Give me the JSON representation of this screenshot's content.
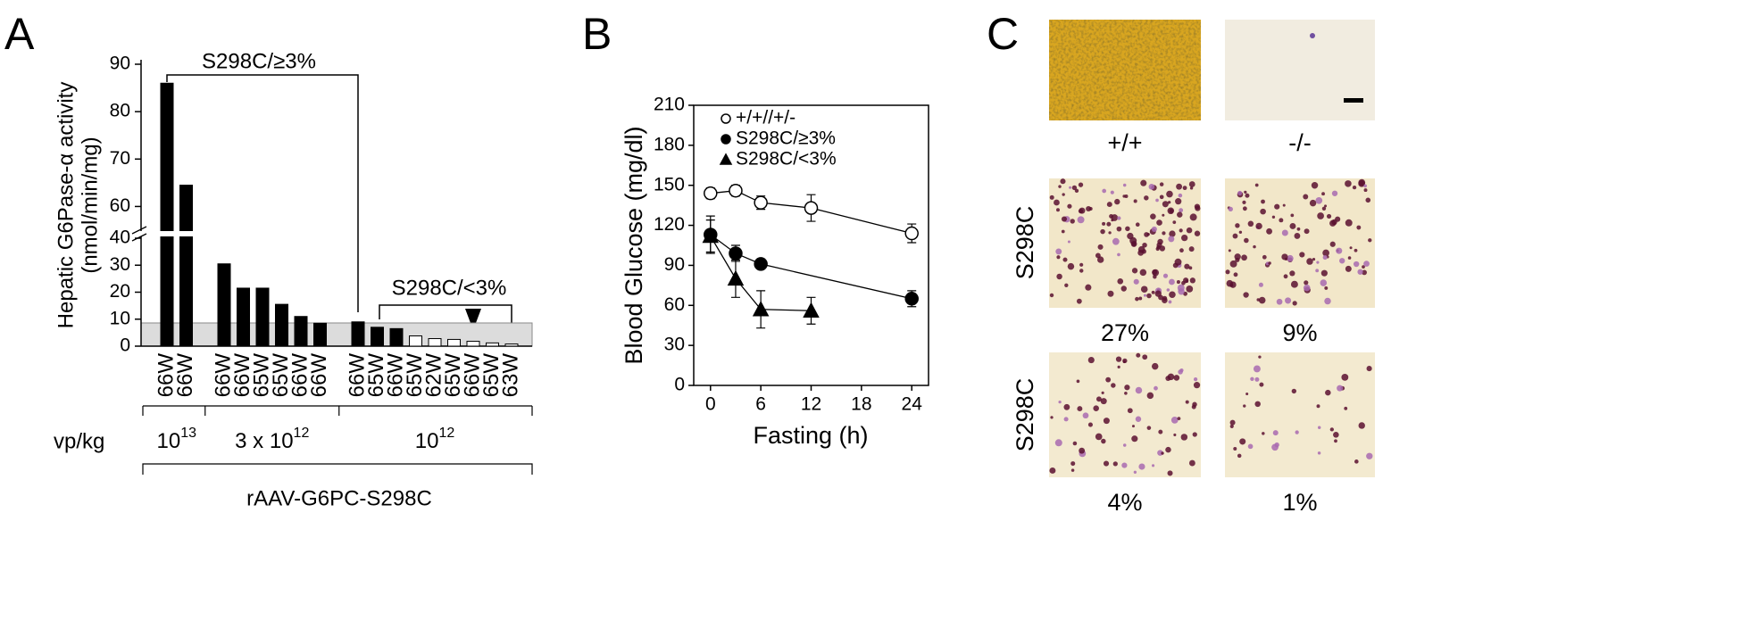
{
  "chart_data": [
    {
      "type": "bar",
      "panel_label": "A",
      "y_label": [
        "Hepatic G6Pase-α activity",
        "(nmol/min/mg)"
      ],
      "x_label": "vp/kg",
      "group_title": "rAAV-G6PC-S298C",
      "annotations": [
        "S298C/≥3%",
        "S298C/<3%"
      ],
      "ylim": [
        0,
        90
      ],
      "ybreak": [
        40,
        55
      ],
      "yticks": [
        0,
        10,
        20,
        30,
        40,
        60,
        70,
        80,
        90
      ],
      "threshold": 8.6,
      "groups": [
        {
          "dose": [
            "10",
            "13"
          ],
          "categories": [
            "66W",
            "66W"
          ],
          "values": [
            86,
            64.5
          ],
          "colors": [
            "#000000",
            "#000000"
          ]
        },
        {
          "dose": [
            "3 x 10",
            "12"
          ],
          "categories": [
            "66W",
            "66W",
            "65W",
            "65W",
            "66W",
            "66W"
          ],
          "values": [
            30.5,
            21.5,
            21.5,
            15.5,
            11,
            8.5
          ],
          "colors": [
            "#000000",
            "#000000",
            "#000000",
            "#000000",
            "#000000",
            "#000000"
          ]
        },
        {
          "dose": [
            "10",
            "12"
          ],
          "categories": [
            "66W",
            "65W",
            "66W",
            "65W",
            "62W",
            "65W",
            "66W",
            "65W",
            "63W"
          ],
          "values": [
            9,
            7,
            6.5,
            3.8,
            2.8,
            2.5,
            1.8,
            1.2,
            0.8
          ],
          "colors": [
            "#000000",
            "#000000",
            "#000000",
            "#ffffff",
            "#ffffff",
            "#ffffff",
            "#ffffff",
            "#ffffff",
            "#ffffff"
          ]
        }
      ]
    },
    {
      "type": "line",
      "panel_label": "B",
      "x_label": "Fasting (h)",
      "y_label": "Blood Glucose (mg/dl)",
      "xlim": [
        -2,
        26
      ],
      "xticks": [
        0,
        6,
        12,
        18,
        24
      ],
      "ylim": [
        0,
        210
      ],
      "yticks": [
        0,
        30,
        60,
        90,
        120,
        150,
        180,
        210
      ],
      "legend": "upper left",
      "series": [
        {
          "name": "+/+//+/-",
          "marker": "circle",
          "color": "#000000",
          "fill": "#ffffff",
          "x": [
            0,
            3,
            6,
            12,
            24
          ],
          "values": [
            144,
            146,
            137,
            133,
            114
          ],
          "errors": [
            4,
            4,
            5,
            10,
            7
          ]
        },
        {
          "name": "S298C/≥3%",
          "marker": "circle",
          "color": "#000000",
          "fill": "#000000",
          "x": [
            0,
            3,
            6,
            24
          ],
          "values": [
            113,
            99,
            91,
            65
          ],
          "errors": [
            14,
            6,
            3,
            6
          ]
        },
        {
          "name": "S298C/<3%",
          "marker": "triangle",
          "color": "#000000",
          "fill": "#000000",
          "x": [
            0,
            3,
            6,
            12
          ],
          "values": [
            112,
            80,
            57,
            56
          ],
          "errors": [
            12,
            14,
            14,
            10
          ]
        }
      ]
    }
  ],
  "panel_c": {
    "panel_label": "C",
    "columns": [
      "+/+",
      "-/-"
    ],
    "rows": [
      "S298C",
      "S298C"
    ],
    "percentages": [
      "27%",
      "9%",
      "4%",
      "1%"
    ]
  }
}
